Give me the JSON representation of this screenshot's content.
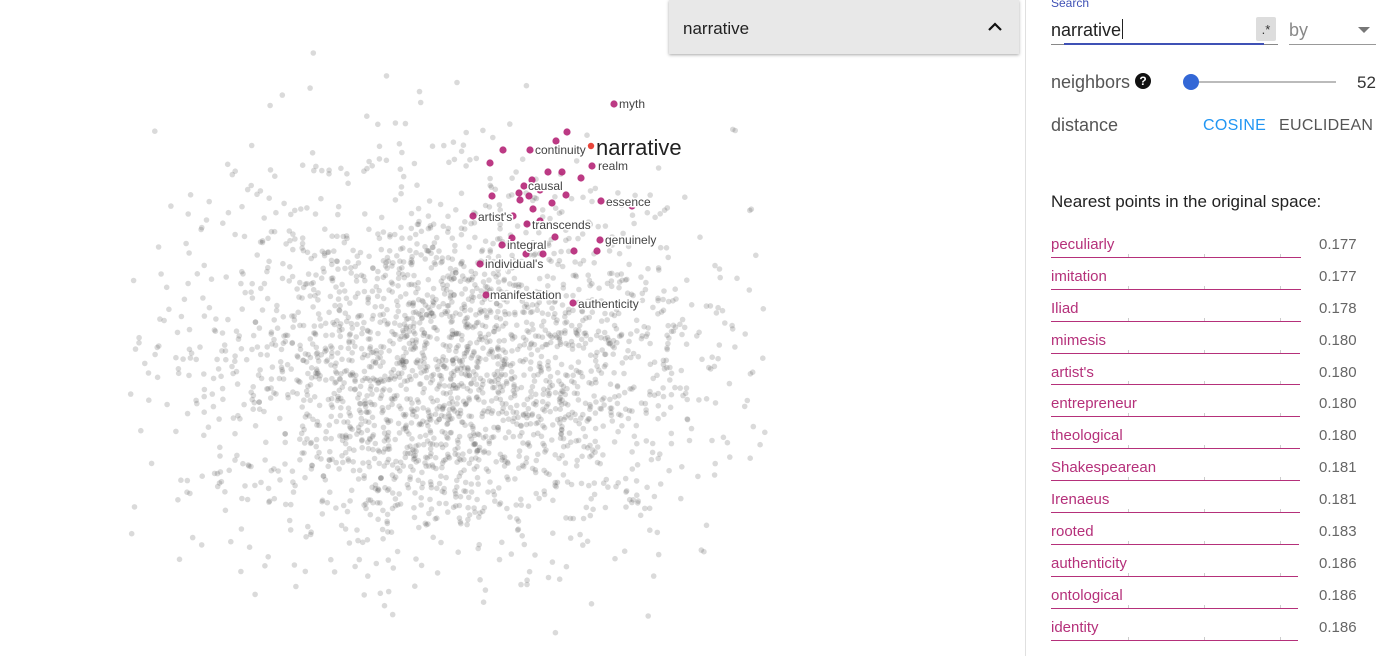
{
  "projector": {
    "selected_point": "narrative",
    "highlight_labels": {
      "center": "narrative",
      "neighbors": [
        "myth",
        "continuity",
        "realm",
        "causal",
        "essence",
        "artist's",
        "transcends",
        "genuinely",
        "integral",
        "individual's",
        "manifestation",
        "authenticity"
      ]
    },
    "colors": {
      "background_points": "#555555",
      "neighbor_points": "#b0186e",
      "selected_point": "#e8443a"
    }
  },
  "inspector": {
    "search": {
      "label": "Search",
      "value": "narrative",
      "regex_label": ".*",
      "by_label": "by"
    },
    "neighbors": {
      "label": "neighbors",
      "help_icon": "?",
      "value": "52"
    },
    "distance": {
      "label": "distance",
      "options": [
        "COSINE",
        "EUCLIDEAN"
      ],
      "selected": "COSINE",
      "accent_color": "#2196f3"
    },
    "nearest": {
      "title": "Nearest points in the original space:",
      "items": [
        {
          "word": "peculiarly",
          "distance": "0.177"
        },
        {
          "word": "imitation",
          "distance": "0.177"
        },
        {
          "word": "Iliad",
          "distance": "0.178"
        },
        {
          "word": "mimesis",
          "distance": "0.180"
        },
        {
          "word": "artist's",
          "distance": "0.180"
        },
        {
          "word": "entrepreneur",
          "distance": "0.180"
        },
        {
          "word": "theological",
          "distance": "0.180"
        },
        {
          "word": "Shakespearean",
          "distance": "0.181"
        },
        {
          "word": "Irenaeus",
          "distance": "0.181"
        },
        {
          "word": "rooted",
          "distance": "0.183"
        },
        {
          "word": "authenticity",
          "distance": "0.186"
        },
        {
          "word": "ontological",
          "distance": "0.186"
        },
        {
          "word": "identity",
          "distance": "0.186"
        }
      ]
    }
  }
}
